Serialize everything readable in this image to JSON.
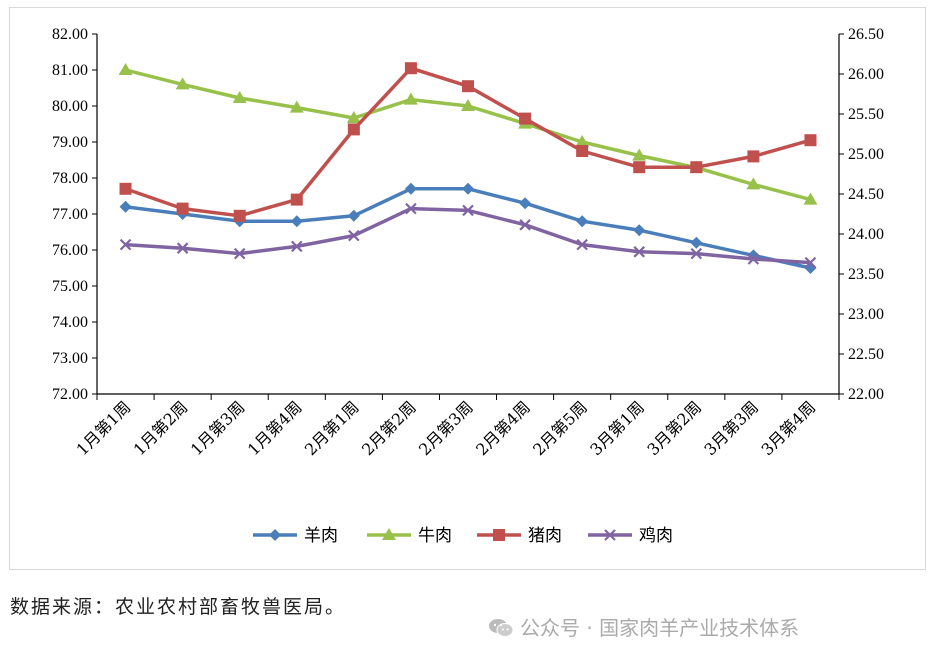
{
  "chart_data": {
    "type": "line",
    "title": "",
    "categories": [
      "1月第1周",
      "1月第2周",
      "1月第3周",
      "1月第4周",
      "2月第1周",
      "2月第2周",
      "2月第3周",
      "2月第4周",
      "2月第5周",
      "3月第1周",
      "3月第2周",
      "3月第3周",
      "3月第4周"
    ],
    "left_axis": {
      "ylim": [
        72,
        82
      ],
      "step": 1,
      "ticks": [
        "72.00",
        "73.00",
        "74.00",
        "75.00",
        "76.00",
        "77.00",
        "78.00",
        "79.00",
        "80.00",
        "81.00",
        "82.00"
      ]
    },
    "right_axis": {
      "ylim": [
        22,
        26.5
      ],
      "step": 0.5,
      "ticks": [
        "22.00",
        "22.50",
        "23.00",
        "23.50",
        "24.00",
        "24.50",
        "25.00",
        "25.50",
        "26.00",
        "26.50"
      ]
    },
    "series": [
      {
        "name": "羊肉",
        "axis": "left",
        "color": "#4a7ebb",
        "marker": "diamond",
        "values": [
          77.2,
          77.0,
          76.8,
          76.8,
          76.95,
          77.7,
          77.7,
          77.3,
          76.8,
          76.55,
          76.2,
          75.85,
          75.5
        ]
      },
      {
        "name": "牛肉",
        "axis": "right",
        "color": "#98c14b",
        "marker": "triangle",
        "values": [
          26.05,
          25.87,
          25.7,
          25.58,
          25.45,
          25.68,
          25.6,
          25.38,
          25.15,
          24.98,
          24.83,
          24.62,
          24.43
        ]
      },
      {
        "name": "猪肉",
        "axis": "left",
        "color": "#c0504d",
        "marker": "square",
        "values": [
          77.7,
          77.15,
          76.95,
          77.4,
          79.35,
          81.05,
          80.55,
          79.65,
          78.75,
          78.3,
          78.3,
          78.6,
          79.05
        ]
      },
      {
        "name": "鸡肉",
        "axis": "left",
        "color": "#8064a2",
        "marker": "x",
        "values": [
          76.15,
          76.05,
          75.9,
          76.1,
          76.4,
          77.15,
          77.1,
          76.7,
          76.15,
          75.95,
          75.9,
          75.75,
          75.65
        ]
      }
    ],
    "legend_position": "bottom",
    "grid": false
  },
  "source_text": "数据来源：农业农村部畜牧兽医局。",
  "watermark_text": "公众号 · 国家肉羊产业技术体系"
}
